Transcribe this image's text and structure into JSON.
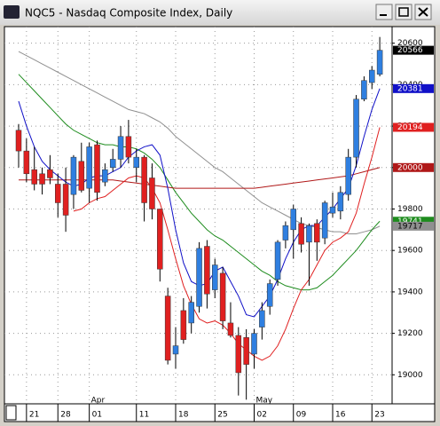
{
  "chart_data": {
    "type": "candlestick",
    "title": "NQC5 - Nasdaq Composite Index, Daily",
    "categories": [
      null,
      "21",
      null,
      null,
      null,
      "28",
      null,
      null,
      null,
      "01",
      null,
      null,
      null,
      null,
      null,
      "11",
      null,
      null,
      null,
      null,
      "18",
      null,
      null,
      null,
      null,
      "25",
      null,
      null,
      null,
      null,
      "02",
      null,
      null,
      null,
      null,
      "09",
      null,
      null,
      null,
      null,
      "16",
      null,
      null,
      null,
      null,
      "23",
      null
    ],
    "months": [
      null,
      null,
      null,
      null,
      null,
      null,
      null,
      null,
      null,
      "Apr",
      null,
      null,
      null,
      null,
      null,
      null,
      null,
      null,
      null,
      null,
      null,
      null,
      null,
      null,
      null,
      null,
      null,
      null,
      null,
      null,
      "May",
      null,
      null,
      null,
      null,
      null,
      null,
      null,
      null,
      null,
      null,
      null,
      null,
      null,
      null,
      null,
      null
    ],
    "open": [
      20180,
      20080,
      19990,
      19970,
      19990,
      19920,
      19920,
      19870,
      20030,
      19900,
      20110,
      19930,
      20000,
      20040,
      20150,
      20000,
      20050,
      19950,
      19800,
      19380,
      19100,
      19310,
      19250,
      19330,
      19620,
      19410,
      19490,
      19250,
      19190,
      19180,
      19100,
      19230,
      19330,
      19460,
      19650,
      19700,
      19730,
      19640,
      19730,
      19660,
      19780,
      19790,
      19870,
      20050,
      20330,
      20410,
      20450
    ],
    "high": [
      20210,
      20140,
      20100,
      20000,
      20060,
      19970,
      20000,
      20060,
      20120,
      20120,
      20130,
      20020,
      20090,
      20200,
      20230,
      20090,
      20060,
      20020,
      19800,
      19420,
      19230,
      19370,
      19380,
      19640,
      19650,
      19560,
      19520,
      19350,
      19230,
      19220,
      19220,
      19350,
      19460,
      19650,
      19740,
      19820,
      19760,
      19730,
      19750,
      19840,
      19880,
      19910,
      20090,
      20350,
      20440,
      20490,
      20630
    ],
    "low": [
      20000,
      19930,
      19890,
      19870,
      19920,
      19760,
      19690,
      19800,
      19880,
      19830,
      19840,
      19910,
      19980,
      20000,
      20020,
      19930,
      19740,
      19750,
      19450,
      19050,
      19030,
      19150,
      19200,
      19300,
      19320,
      19370,
      19220,
      19180,
      18900,
      18880,
      19030,
      19170,
      19290,
      19430,
      19610,
      19560,
      19590,
      19430,
      19550,
      19630,
      19760,
      19750,
      19840,
      20000,
      20320,
      20380,
      20440
    ],
    "close": [
      20080,
      19970,
      19920,
      19920,
      19950,
      19830,
      19770,
      20050,
      19890,
      20100,
      19880,
      19990,
      20040,
      20150,
      20050,
      20050,
      19830,
      19800,
      19510,
      19070,
      19140,
      19170,
      19350,
      19610,
      19390,
      19530,
      19260,
      19190,
      19010,
      19050,
      19200,
      19310,
      19440,
      19640,
      19720,
      19800,
      19630,
      19720,
      19640,
      19830,
      19810,
      19880,
      20050,
      20330,
      20420,
      20470,
      20566
    ],
    "up_color": "#2f7fe0",
    "down_color": "#e02020",
    "lines": [
      {
        "color": "#909090",
        "values": [
          20560,
          20540,
          20520,
          20500,
          20480,
          20460,
          20440,
          20420,
          20400,
          20380,
          20360,
          20340,
          20320,
          20300,
          20280,
          20270,
          20260,
          20240,
          20220,
          20190,
          20150,
          20120,
          20090,
          20060,
          20030,
          20000,
          19980,
          19950,
          19920,
          19890,
          19860,
          19830,
          19810,
          19790,
          19770,
          19750,
          19730,
          19720,
          19710,
          19700,
          19690,
          19690,
          19680,
          19680,
          19690,
          19700,
          19717
        ]
      },
      {
        "color": "#1e8c1e",
        "values": [
          20450,
          20410,
          20370,
          20330,
          20290,
          20250,
          20210,
          20180,
          20160,
          20140,
          20120,
          20110,
          20110,
          20100,
          20100,
          20090,
          20070,
          20040,
          20000,
          19940,
          19880,
          19830,
          19780,
          19740,
          19700,
          19670,
          19650,
          19620,
          19590,
          19560,
          19530,
          19500,
          19480,
          19450,
          19430,
          19420,
          19410,
          19410,
          19420,
          19450,
          19480,
          19520,
          19560,
          19600,
          19650,
          19700,
          19741
        ]
      },
      {
        "color": "#b01818",
        "values": [
          19940,
          19940,
          19940,
          19940,
          19940,
          19940,
          19940,
          19940,
          19940,
          19940,
          19940,
          19940,
          19940,
          19935,
          19930,
          19925,
          19920,
          19915,
          19910,
          19905,
          19900,
          19900,
          19900,
          19900,
          19900,
          19900,
          19900,
          19900,
          19900,
          19900,
          19900,
          19905,
          19910,
          19915,
          19920,
          19925,
          19930,
          19935,
          19940,
          19945,
          19950,
          19955,
          19960,
          19970,
          19980,
          19990,
          20000
        ]
      },
      {
        "color": "#e02020",
        "values": [
          null,
          null,
          null,
          null,
          null,
          null,
          null,
          19790,
          19800,
          19830,
          19850,
          19860,
          19890,
          19920,
          19950,
          19960,
          19950,
          19900,
          19830,
          19700,
          19560,
          19430,
          19340,
          19270,
          19250,
          19260,
          19240,
          19200,
          19150,
          19120,
          19090,
          19070,
          19090,
          19140,
          19220,
          19320,
          19410,
          19460,
          19530,
          19600,
          19640,
          19660,
          19690,
          19780,
          19920,
          20050,
          20194
        ]
      },
      {
        "color": "#1010c8",
        "values": [
          20320,
          20200,
          20100,
          20030,
          19990,
          19960,
          19930,
          19910,
          19920,
          19950,
          19960,
          19960,
          19980,
          20000,
          20050,
          20080,
          20100,
          20110,
          20060,
          19900,
          19700,
          19540,
          19450,
          19430,
          19440,
          19500,
          19520,
          19450,
          19380,
          19290,
          19280,
          19330,
          19380,
          19460,
          19560,
          19640,
          19700,
          19720,
          19720,
          19760,
          19800,
          19850,
          19900,
          20010,
          20150,
          20280,
          20381
        ]
      }
    ],
    "ylim": [
      18860,
      20680
    ],
    "yticks": [
      19000,
      19200,
      19400,
      19600,
      19800,
      20000,
      20200,
      20400,
      20600
    ],
    "grid": true
  }
}
